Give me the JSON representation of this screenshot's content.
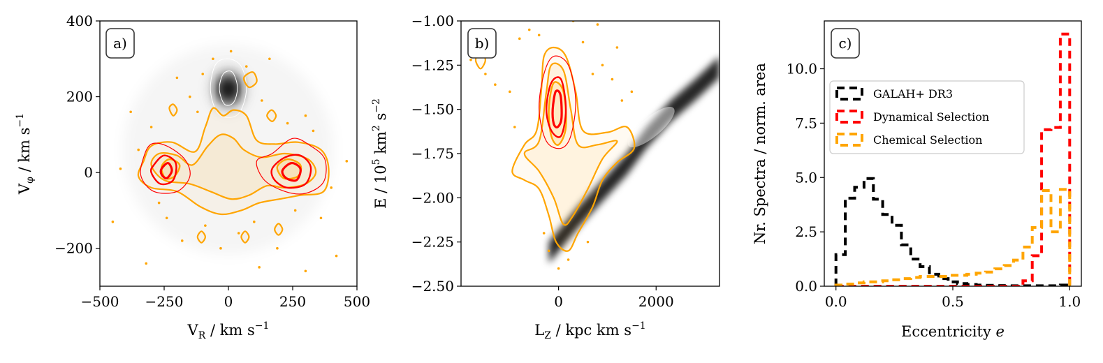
{
  "colors": {
    "galah": "#000000",
    "dynamical": "#ff0000",
    "chemical": "#ffa500",
    "density_gray": "#000000",
    "legend_edge": "#cccccc",
    "tag_edge": "#333333"
  },
  "chart_data": [
    {
      "type": "scatter",
      "panel_tag": "a)",
      "xlabel": "V_R / km s⁻¹",
      "ylabel": "V_φ / km s⁻¹",
      "xlim": [
        -500,
        500
      ],
      "ylim": [
        -300,
        400
      ],
      "xticks": [
        -500,
        -250,
        0,
        250,
        500
      ],
      "xtick_labels": [
        "−500",
        "−250",
        "0",
        "250",
        "500"
      ],
      "yticks": [
        -200,
        0,
        200,
        400
      ],
      "ytick_labels": [
        "−200",
        "0",
        "200",
        "400"
      ],
      "background_density": {
        "center": [
          0,
          220
        ],
        "spread": [
          55,
          45
        ]
      },
      "chemical_contours": [
        [
          [
            -330,
            30
          ],
          [
            -300,
            70
          ],
          [
            -220,
            80
          ],
          [
            -130,
            55
          ],
          [
            -90,
            120
          ],
          [
            -60,
            170
          ],
          [
            -20,
            150
          ],
          [
            20,
            165
          ],
          [
            70,
            150
          ],
          [
            110,
            85
          ],
          [
            180,
            75
          ],
          [
            270,
            80
          ],
          [
            360,
            60
          ],
          [
            390,
            10
          ],
          [
            370,
            -50
          ],
          [
            280,
            -60
          ],
          [
            200,
            -70
          ],
          [
            120,
            -80
          ],
          [
            50,
            -100
          ],
          [
            -30,
            -110
          ],
          [
            -110,
            -90
          ],
          [
            -200,
            -50
          ],
          [
            -300,
            -40
          ],
          [
            -350,
            -10
          ]
        ],
        [
          [
            -300,
            20
          ],
          [
            -270,
            50
          ],
          [
            -200,
            45
          ],
          [
            -140,
            20
          ],
          [
            -80,
            70
          ],
          [
            -30,
            100
          ],
          [
            20,
            90
          ],
          [
            60,
            60
          ],
          [
            130,
            40
          ],
          [
            220,
            50
          ],
          [
            310,
            35
          ],
          [
            340,
            0
          ],
          [
            300,
            -30
          ],
          [
            220,
            -40
          ],
          [
            150,
            -35
          ],
          [
            80,
            -60
          ],
          [
            10,
            -70
          ],
          [
            -70,
            -50
          ],
          [
            -150,
            -30
          ],
          [
            -250,
            -20
          ]
        ],
        [
          [
            -260,
            15
          ],
          [
            -230,
            35
          ],
          [
            -190,
            20
          ],
          [
            -210,
            -10
          ],
          [
            -245,
            -15
          ]
        ],
        [
          [
            190,
            15
          ],
          [
            230,
            35
          ],
          [
            280,
            20
          ],
          [
            270,
            -10
          ],
          [
            215,
            -15
          ]
        ],
        [
          [
            -230,
            170
          ],
          [
            -215,
            150
          ],
          [
            -200,
            165
          ],
          [
            -215,
            180
          ]
        ],
        [
          [
            60,
            250
          ],
          [
            80,
            225
          ],
          [
            110,
            240
          ],
          [
            95,
            265
          ]
        ],
        [
          [
            150,
            150
          ],
          [
            170,
            135
          ],
          [
            185,
            150
          ],
          [
            168,
            165
          ]
        ],
        [
          [
            -120,
            -170
          ],
          [
            -105,
            -185
          ],
          [
            -90,
            -170
          ],
          [
            -105,
            -155
          ]
        ],
        [
          [
            50,
            -170
          ],
          [
            65,
            -185
          ],
          [
            80,
            -170
          ],
          [
            65,
            -155
          ]
        ],
        [
          [
            180,
            -150
          ],
          [
            195,
            -165
          ],
          [
            210,
            -150
          ],
          [
            195,
            -135
          ]
        ]
      ],
      "dynamical_contours": [
        [
          [
            -330,
            40
          ],
          [
            -300,
            75
          ],
          [
            -240,
            70
          ],
          [
            -170,
            35
          ],
          [
            -150,
            -10
          ],
          [
            -200,
            -50
          ],
          [
            -290,
            -50
          ],
          [
            -340,
            -10
          ]
        ],
        [
          [
            -290,
            20
          ],
          [
            -250,
            45
          ],
          [
            -205,
            25
          ],
          [
            -215,
            -20
          ],
          [
            -265,
            -30
          ],
          [
            -300,
            0
          ]
        ],
        [
          [
            -260,
            10
          ],
          [
            -235,
            25
          ],
          [
            -220,
            5
          ],
          [
            -240,
            -15
          ],
          [
            -260,
            -5
          ]
        ],
        [
          [
            110,
            30
          ],
          [
            170,
            50
          ],
          [
            250,
            90
          ],
          [
            320,
            70
          ],
          [
            375,
            35
          ],
          [
            370,
            -25
          ],
          [
            300,
            -55
          ],
          [
            220,
            -50
          ],
          [
            140,
            -20
          ]
        ],
        [
          [
            170,
            10
          ],
          [
            220,
            40
          ],
          [
            280,
            45
          ],
          [
            320,
            15
          ],
          [
            300,
            -30
          ],
          [
            230,
            -40
          ],
          [
            180,
            -20
          ]
        ],
        [
          [
            210,
            5
          ],
          [
            245,
            25
          ],
          [
            280,
            10
          ],
          [
            265,
            -20
          ],
          [
            225,
            -15
          ]
        ]
      ],
      "halo_contours": [
        [
          [
            -70,
            220
          ],
          [
            -50,
            285
          ],
          [
            0,
            300
          ],
          [
            50,
            280
          ],
          [
            70,
            220
          ],
          [
            45,
            160
          ],
          [
            0,
            145
          ],
          [
            -45,
            160
          ]
        ],
        [
          [
            -35,
            220
          ],
          [
            -20,
            260
          ],
          [
            15,
            265
          ],
          [
            35,
            225
          ],
          [
            20,
            185
          ],
          [
            -15,
            180
          ]
        ]
      ],
      "scatter_points": [
        [
          -420,
          10
        ],
        [
          -380,
          160
        ],
        [
          -350,
          60
        ],
        [
          -300,
          120
        ],
        [
          -270,
          -80
        ],
        [
          -240,
          -120
        ],
        [
          -200,
          250
        ],
        [
          -180,
          -180
        ],
        [
          -150,
          200
        ],
        [
          -120,
          160
        ],
        [
          -90,
          -140
        ],
        [
          -60,
          300
        ],
        [
          -30,
          -200
        ],
        [
          10,
          320
        ],
        [
          40,
          -160
        ],
        [
          70,
          280
        ],
        [
          100,
          -130
        ],
        [
          130,
          190
        ],
        [
          160,
          300
        ],
        [
          190,
          -200
        ],
        [
          230,
          130
        ],
        [
          260,
          -100
        ],
        [
          300,
          150
        ],
        [
          330,
          110
        ],
        [
          360,
          -120
        ],
        [
          400,
          -40
        ],
        [
          420,
          -220
        ],
        [
          -450,
          -130
        ],
        [
          -320,
          -240
        ],
        [
          120,
          -250
        ],
        [
          300,
          -260
        ],
        [
          -100,
          260
        ],
        [
          460,
          30
        ]
      ]
    },
    {
      "type": "scatter",
      "panel_tag": "b)",
      "xlabel": "L_Z / kpc km s⁻¹",
      "ylabel": "E / 10⁵ km² s⁻²",
      "xlim": [
        -2000,
        3300
      ],
      "ylim": [
        -2.5,
        -1.0
      ],
      "xticks": [
        0,
        2000
      ],
      "xtick_labels": [
        "0",
        "2000"
      ],
      "yticks": [
        -2.5,
        -2.25,
        -2.0,
        -1.75,
        -1.5,
        -1.25,
        -1.0
      ],
      "ytick_labels": [
        "−2.50",
        "−2.25",
        "−2.00",
        "−1.75",
        "−1.50",
        "−1.25",
        "−1.00"
      ],
      "disk_band": [
        [
          -200,
          -2.3
        ],
        [
          400,
          -2.1
        ],
        [
          900,
          -1.95
        ],
        [
          1400,
          -1.8
        ],
        [
          1800,
          -1.65
        ],
        [
          2300,
          -1.5
        ],
        [
          2800,
          -1.38
        ],
        [
          3300,
          -1.25
        ]
      ],
      "chemical_contours": [
        [
          [
            -950,
            -1.85
          ],
          [
            -700,
            -1.7
          ],
          [
            -450,
            -1.62
          ],
          [
            -350,
            -1.38
          ],
          [
            -300,
            -1.2
          ],
          [
            -100,
            -1.15
          ],
          [
            150,
            -1.2
          ],
          [
            350,
            -1.4
          ],
          [
            500,
            -1.62
          ],
          [
            1000,
            -1.63
          ],
          [
            1400,
            -1.6
          ],
          [
            1550,
            -1.72
          ],
          [
            1200,
            -1.8
          ],
          [
            900,
            -1.9
          ],
          [
            700,
            -2.05
          ],
          [
            400,
            -2.2
          ],
          [
            200,
            -2.3
          ],
          [
            -50,
            -2.25
          ],
          [
            -200,
            -2.1
          ],
          [
            -400,
            -1.95
          ],
          [
            -700,
            -1.9
          ]
        ],
        [
          [
            -700,
            -1.75
          ],
          [
            -400,
            -1.68
          ],
          [
            -250,
            -1.4
          ],
          [
            -150,
            -1.25
          ],
          [
            100,
            -1.28
          ],
          [
            250,
            -1.5
          ],
          [
            400,
            -1.7
          ],
          [
            800,
            -1.7
          ],
          [
            1200,
            -1.68
          ],
          [
            900,
            -1.78
          ],
          [
            600,
            -1.95
          ],
          [
            300,
            -2.1
          ],
          [
            100,
            -2.15
          ],
          [
            -100,
            -2.0
          ],
          [
            -400,
            -1.85
          ]
        ],
        [
          [
            -200,
            -1.5
          ],
          [
            -100,
            -1.35
          ],
          [
            100,
            -1.4
          ],
          [
            150,
            -1.6
          ],
          [
            0,
            -1.7
          ],
          [
            -150,
            -1.65
          ]
        ],
        [
          [
            -1700,
            -1.22
          ],
          [
            -1600,
            -1.27
          ],
          [
            -1500,
            -1.22
          ],
          [
            -1600,
            -1.18
          ]
        ]
      ],
      "dynamical_contours": [
        [
          [
            -400,
            -1.5
          ],
          [
            -300,
            -1.3
          ],
          [
            -100,
            -1.2
          ],
          [
            200,
            -1.25
          ],
          [
            350,
            -1.45
          ],
          [
            250,
            -1.65
          ],
          [
            50,
            -1.72
          ],
          [
            -250,
            -1.68
          ]
        ],
        [
          [
            -250,
            -1.5
          ],
          [
            -150,
            -1.35
          ],
          [
            50,
            -1.33
          ],
          [
            150,
            -1.5
          ],
          [
            50,
            -1.65
          ],
          [
            -150,
            -1.62
          ]
        ],
        [
          [
            -120,
            -1.5
          ],
          [
            -60,
            -1.4
          ],
          [
            40,
            -1.42
          ],
          [
            60,
            -1.55
          ],
          [
            -20,
            -1.6
          ],
          [
            -100,
            -1.58
          ]
        ]
      ],
      "scatter_points": [
        [
          -1800,
          -1.22
        ],
        [
          -1500,
          -1.3
        ],
        [
          -1300,
          -1.36
        ],
        [
          -1000,
          -1.4
        ],
        [
          -800,
          -1.1
        ],
        [
          -600,
          -1.05
        ],
        [
          -400,
          -1.08
        ],
        [
          -200,
          -2.3
        ],
        [
          0,
          -2.4
        ],
        [
          300,
          -1.0
        ],
        [
          500,
          -1.12
        ],
        [
          700,
          -1.3
        ],
        [
          900,
          -1.25
        ],
        [
          1100,
          -1.33
        ],
        [
          1300,
          -1.45
        ],
        [
          1500,
          -1.4
        ],
        [
          200,
          -2.35
        ],
        [
          -300,
          -2.2
        ],
        [
          600,
          -2.25
        ],
        [
          -900,
          -1.6
        ],
        [
          1200,
          -1.15
        ],
        [
          800,
          -1.02
        ]
      ]
    },
    {
      "type": "histogram",
      "panel_tag": "c)",
      "xlabel": "Eccentricity e",
      "ylabel": "Nr. Spectra / norm. area",
      "xlim": [
        -0.05,
        1.05
      ],
      "ylim": [
        0,
        12.2
      ],
      "xticks": [
        0,
        0.5,
        1.0
      ],
      "xtick_labels": [
        "0.0",
        "0.5",
        "1.0"
      ],
      "yticks": [
        0,
        2.5,
        5.0,
        7.5,
        10.0
      ],
      "ytick_labels": [
        "0.0",
        "2.5",
        "5.0",
        "7.5",
        "10.0"
      ],
      "bin_edges": [
        0.0,
        0.04,
        0.08,
        0.12,
        0.16,
        0.2,
        0.24,
        0.28,
        0.32,
        0.36,
        0.4,
        0.44,
        0.48,
        0.52,
        0.56,
        0.6,
        0.64,
        0.68,
        0.72,
        0.76,
        0.8,
        0.84,
        0.88,
        0.92,
        0.96,
        1.0
      ],
      "legend_position": "upper-left",
      "series": [
        {
          "name": "GALAH+ DR3",
          "color": "#000000",
          "values": [
            1.45,
            4.05,
            4.55,
            4.95,
            4.0,
            3.3,
            2.8,
            1.9,
            1.25,
            0.9,
            0.55,
            0.35,
            0.2,
            0.12,
            0.08,
            0.05,
            0.04,
            0.03,
            0.02,
            0.02,
            0.02,
            0.02,
            0.02,
            0.02,
            0.05
          ]
        },
        {
          "name": "Dynamical Selection",
          "color": "#ff0000",
          "values": [
            0.0,
            0.0,
            0.0,
            0.0,
            0.0,
            0.0,
            0.0,
            0.0,
            0.0,
            0.0,
            0.0,
            0.0,
            0.0,
            0.0,
            0.0,
            0.0,
            0.0,
            0.0,
            0.0,
            0.0,
            0.25,
            1.4,
            7.2,
            7.3,
            11.6
          ]
        },
        {
          "name": "Chemical Selection",
          "color": "#ffa500",
          "values": [
            0.05,
            0.1,
            0.15,
            0.2,
            0.2,
            0.25,
            0.3,
            0.35,
            0.4,
            0.45,
            0.45,
            0.45,
            0.5,
            0.5,
            0.55,
            0.6,
            0.65,
            0.8,
            0.95,
            1.2,
            1.8,
            2.7,
            4.4,
            2.5,
            4.45
          ]
        }
      ]
    }
  ]
}
